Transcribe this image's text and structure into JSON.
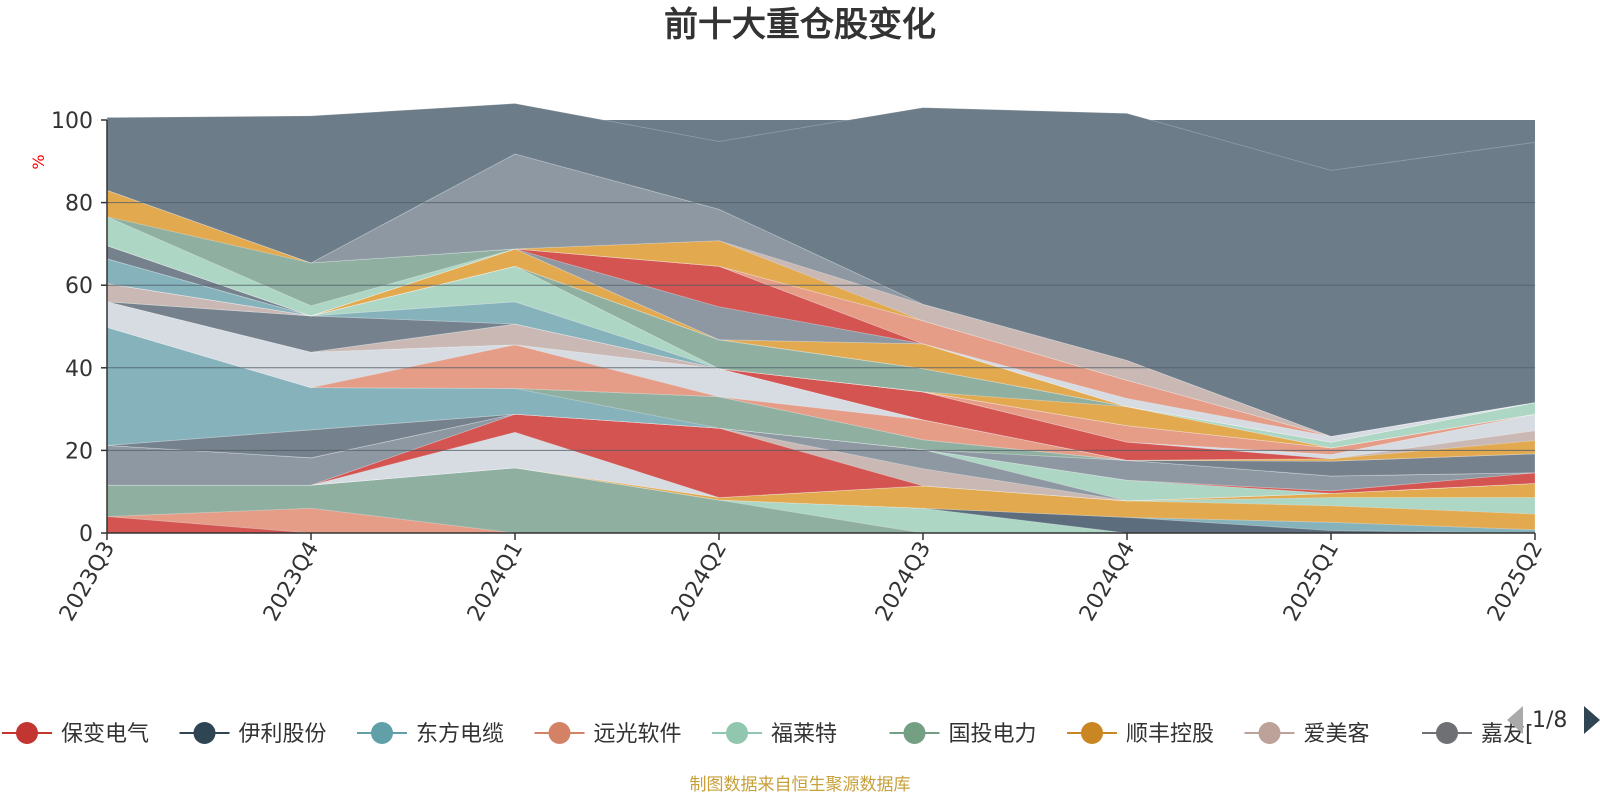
{
  "chart_data": {
    "type": "area",
    "stacked": true,
    "title": "前十大重仓股变化",
    "unit_label": "%",
    "categories": [
      "2023Q3",
      "2023Q4",
      "2024Q1",
      "2024Q2",
      "2024Q3",
      "2024Q4",
      "2025Q1",
      "2025Q2"
    ],
    "ylim": [
      0,
      100
    ],
    "yticks": [
      0,
      20,
      40,
      60,
      80,
      100
    ],
    "grid": true,
    "series": [
      {
        "name": "保变电气",
        "color": "#d35450",
        "values": [
          4.0,
          0.0,
          0.0,
          0.0,
          0.0,
          0.0,
          0.0,
          0.0
        ]
      },
      {
        "name": "",
        "color": "#e59d88",
        "values": [
          0.0,
          6.0,
          0.0,
          0.0,
          0.0,
          0.0,
          0.0,
          0.0
        ]
      },
      {
        "name": "",
        "color": "#8fb0a0",
        "values": [
          7.6,
          5.6,
          15.8,
          8.0,
          0.0,
          0.0,
          0.0,
          0.0
        ]
      },
      {
        "name": "",
        "color": "#aed6c4",
        "values": [
          0.0,
          0.0,
          0.0,
          0.0,
          6.0,
          0.0,
          0.0,
          0.0
        ]
      },
      {
        "name": "伊利股份",
        "color": "#5c6e7e",
        "values": [
          0.0,
          0.0,
          0.0,
          0.0,
          0.0,
          3.8,
          0.6,
          0.0
        ]
      },
      {
        "name": "东方电缆",
        "color": "#86b2bc",
        "values": [
          0.0,
          0.0,
          0.0,
          0.0,
          0.0,
          0.0,
          2.0,
          0.8
        ]
      },
      {
        "name": "顺丰控股",
        "color": "#e2a94f",
        "values": [
          0.0,
          0.0,
          0.0,
          0.6,
          5.4,
          4.0,
          4.0,
          3.8
        ]
      },
      {
        "name": "福莱特",
        "color": "#aed6c4",
        "values": [
          0.0,
          0.0,
          0.0,
          0.0,
          0.0,
          0.0,
          2.0,
          4.0
        ]
      },
      {
        "name": "",
        "color": "#e2a94f",
        "values": [
          0.0,
          0.0,
          0.0,
          0.0,
          0.0,
          0.0,
          1.0,
          3.4
        ]
      },
      {
        "name": "",
        "color": "#d7dce3",
        "values": [
          0.0,
          0.0,
          8.6,
          0.0,
          0.0,
          0.0,
          0.0,
          0.0
        ]
      },
      {
        "name": "",
        "color": "#d35450",
        "values": [
          0.0,
          0.0,
          4.4,
          16.8,
          0.0,
          0.0,
          0.0,
          0.0
        ]
      },
      {
        "name": "",
        "color": "#c9b8b4",
        "values": [
          0.0,
          0.0,
          0.0,
          0.0,
          4.2,
          0.0,
          0.0,
          0.0
        ]
      },
      {
        "name": "",
        "color": "#8e98a3",
        "values": [
          9.6,
          6.6,
          0.0,
          0.0,
          4.6,
          0.0,
          0.0,
          0.0
        ]
      },
      {
        "name": "",
        "color": "#aed6c4",
        "values": [
          0.0,
          0.0,
          0.0,
          0.0,
          0.0,
          5.0,
          0.0,
          0.0
        ]
      },
      {
        "name": "",
        "color": "#d35450",
        "values": [
          0.0,
          0.0,
          0.0,
          0.0,
          0.0,
          0.0,
          0.6,
          2.6
        ]
      },
      {
        "name": "",
        "color": "#75828e",
        "values": [
          0.0,
          6.8,
          0.0,
          0.0,
          0.0,
          0.0,
          0.0,
          0.0
        ]
      },
      {
        "name": "",
        "color": "#8e98a3",
        "values": [
          0.0,
          0.0,
          0.0,
          0.0,
          0.0,
          4.8,
          3.6,
          0.0
        ]
      },
      {
        "name": "",
        "color": "#86b2bc",
        "values": [
          28.6,
          10.2,
          6.2,
          0.0,
          0.0,
          0.0,
          0.0,
          0.0
        ]
      },
      {
        "name": "",
        "color": "#8fb0a0",
        "values": [
          0.0,
          0.0,
          0.0,
          7.6,
          2.4,
          0.0,
          0.0,
          0.0
        ]
      },
      {
        "name": "",
        "color": "#75828e",
        "values": [
          0.0,
          0.0,
          0.0,
          0.0,
          0.0,
          0.0,
          3.6,
          4.6
        ]
      },
      {
        "name": "远光软件",
        "color": "#e59d88",
        "values": [
          0.0,
          0.0,
          10.6,
          0.0,
          4.8,
          0.0,
          0.0,
          0.0
        ]
      },
      {
        "name": "",
        "color": "#d7dce3",
        "values": [
          6.2,
          8.6,
          0.0,
          6.8,
          0.0,
          0.0,
          0.0,
          0.0
        ]
      },
      {
        "name": "",
        "color": "#e2a94f",
        "values": [
          0.0,
          0.0,
          0.0,
          0.0,
          0.0,
          0.0,
          0.6,
          3.2
        ]
      },
      {
        "name": "",
        "color": "#c9b8b4",
        "values": [
          0.0,
          0.0,
          5.0,
          0.0,
          0.0,
          0.0,
          0.0,
          2.4
        ]
      },
      {
        "name": "",
        "color": "#d35450",
        "values": [
          0.0,
          0.0,
          0.0,
          0.0,
          6.8,
          4.4,
          0.0,
          0.0
        ]
      },
      {
        "name": "",
        "color": "#d7dce3",
        "values": [
          0.0,
          0.0,
          0.0,
          0.0,
          0.0,
          0.0,
          1.0,
          4.0
        ]
      },
      {
        "name": "",
        "color": "#75828e",
        "values": [
          0.0,
          8.8,
          0.0,
          0.0,
          0.0,
          0.0,
          0.0,
          0.0
        ]
      },
      {
        "name": "",
        "color": "#e59d88",
        "values": [
          0.0,
          0.0,
          0.0,
          0.0,
          0.0,
          4.0,
          1.6,
          0.0
        ]
      },
      {
        "name": "",
        "color": "#86b2bc",
        "values": [
          0.0,
          0.0,
          5.4,
          0.0,
          0.0,
          0.0,
          0.0,
          0.0
        ]
      },
      {
        "name": "",
        "color": "#c9b8b4",
        "values": [
          4.4,
          0.0,
          0.0,
          0.0,
          0.0,
          0.0,
          0.0,
          0.0
        ]
      },
      {
        "name": "",
        "color": "#aed6c4",
        "values": [
          0.0,
          0.0,
          8.6,
          0.0,
          0.0,
          0.0,
          0.0,
          0.0
        ]
      },
      {
        "name": "",
        "color": "#e2a94f",
        "values": [
          0.0,
          0.0,
          0.0,
          0.0,
          0.0,
          4.6,
          0.0,
          0.0
        ]
      },
      {
        "name": "",
        "color": "#8fb0a0",
        "values": [
          0.0,
          0.0,
          0.0,
          7.0,
          5.6,
          0.0,
          0.0,
          0.0
        ]
      },
      {
        "name": "",
        "color": "#86b2bc",
        "values": [
          6.0,
          0.0,
          0.0,
          0.0,
          0.0,
          0.0,
          0.0,
          0.0
        ]
      },
      {
        "name": "",
        "color": "#aed6c4",
        "values": [
          0.0,
          0.0,
          0.0,
          0.0,
          0.0,
          0.0,
          1.4,
          2.8
        ]
      },
      {
        "name": "",
        "color": "#e2a94f",
        "values": [
          0.0,
          0.0,
          4.2,
          0.0,
          6.0,
          0.0,
          0.0,
          0.0
        ]
      },
      {
        "name": "",
        "color": "#75828e",
        "values": [
          3.2,
          0.0,
          0.0,
          0.0,
          0.0,
          0.0,
          0.0,
          0.0
        ]
      },
      {
        "name": "",
        "color": "#8e98a3",
        "values": [
          0.0,
          0.0,
          0.0,
          8.0,
          0.0,
          0.0,
          0.0,
          0.0
        ]
      },
      {
        "name": "",
        "color": "#d35450",
        "values": [
          0.0,
          0.0,
          0.0,
          9.8,
          0.0,
          0.0,
          0.0,
          0.0
        ]
      },
      {
        "name": "",
        "color": "#d7dce3",
        "values": [
          0.0,
          0.0,
          0.0,
          0.0,
          0.0,
          2.0,
          1.4,
          0.0
        ]
      },
      {
        "name": "",
        "color": "#e59d88",
        "values": [
          0.0,
          0.0,
          0.0,
          0.0,
          5.6,
          4.4,
          0.0,
          0.0
        ]
      },
      {
        "name": "",
        "color": "#aed6c4",
        "values": [
          7.0,
          2.4,
          0.0,
          0.0,
          0.0,
          0.0,
          0.0,
          0.0
        ]
      },
      {
        "name": "",
        "color": "#8fb0a0",
        "values": [
          0.0,
          10.4,
          0.0,
          0.0,
          0.0,
          0.0,
          0.0,
          0.0
        ]
      },
      {
        "name": "",
        "color": "#e2a94f",
        "values": [
          6.4,
          0.0,
          0.0,
          6.2,
          0.0,
          0.0,
          0.0,
          0.0
        ]
      },
      {
        "name": "",
        "color": "#c9b8b4",
        "values": [
          0.0,
          0.0,
          0.0,
          0.0,
          4.0,
          4.8,
          0.0,
          0.0
        ]
      },
      {
        "name": "",
        "color": "#8e98a3",
        "values": [
          0.0,
          0.0,
          23.0,
          7.6,
          0.0,
          0.0,
          0.0,
          0.0
        ]
      },
      {
        "name": "",
        "color": "#aeb0b6",
        "values": [
          0.0,
          0.0,
          0.0,
          0.0,
          0.0,
          0.0,
          0.0,
          0.0
        ]
      },
      {
        "name": "",
        "color": "#6c7d89",
        "values": [
          17.6,
          35.6,
          12.2,
          16.4,
          47.6,
          59.8,
          64.4,
          63.0
        ]
      }
    ],
    "legend": {
      "items": [
        {
          "label": "保变电气",
          "color": "#c23531"
        },
        {
          "label": "伊利股份",
          "color": "#2f4554"
        },
        {
          "label": "东方电缆",
          "color": "#61a0a8"
        },
        {
          "label": "远光软件",
          "color": "#d48265"
        },
        {
          "label": "福莱特",
          "color": "#91c7ae"
        },
        {
          "label": "国投电力",
          "color": "#749f83"
        },
        {
          "label": "顺丰控股",
          "color": "#ca8622"
        },
        {
          "label": "爱美客",
          "color": "#bda29a"
        },
        {
          "label": "嘉友[",
          "color": "#6e7074"
        }
      ],
      "page": "1/8",
      "position": "bottom"
    },
    "source_note": "制图数据来自恒生聚源数据库"
  }
}
